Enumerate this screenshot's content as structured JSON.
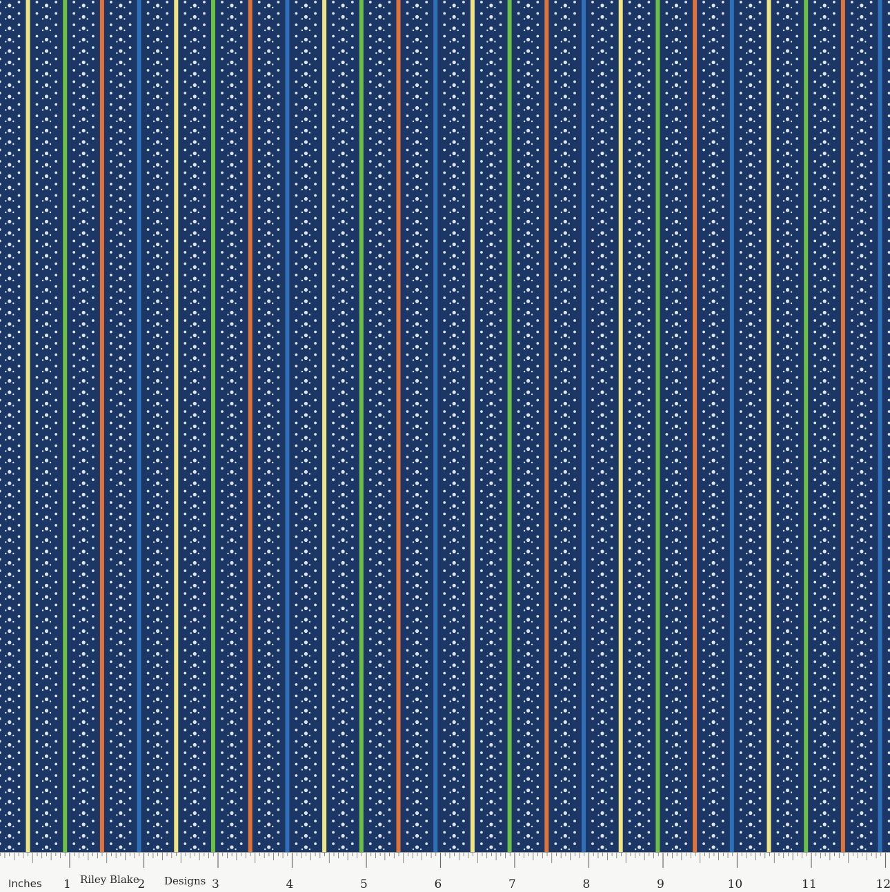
{
  "fabric": {
    "background_color": "#1c3766",
    "dot_color": "#dfe6ef",
    "stripe_colors": {
      "yellow": "#efe584",
      "green": "#6cbf45",
      "orange": "#e0733a",
      "blue": "#2f6fb7"
    },
    "stripe_sequence": [
      "yellow",
      "green",
      "orange",
      "blue"
    ]
  },
  "ruler": {
    "unit_label": "Inches",
    "brand_part1": "Riley Blake",
    "brand_part2": "Designs",
    "numbers": [
      "1",
      "2",
      "3",
      "4",
      "5",
      "6",
      "7",
      "8",
      "9",
      "10",
      "11",
      "12"
    ]
  }
}
